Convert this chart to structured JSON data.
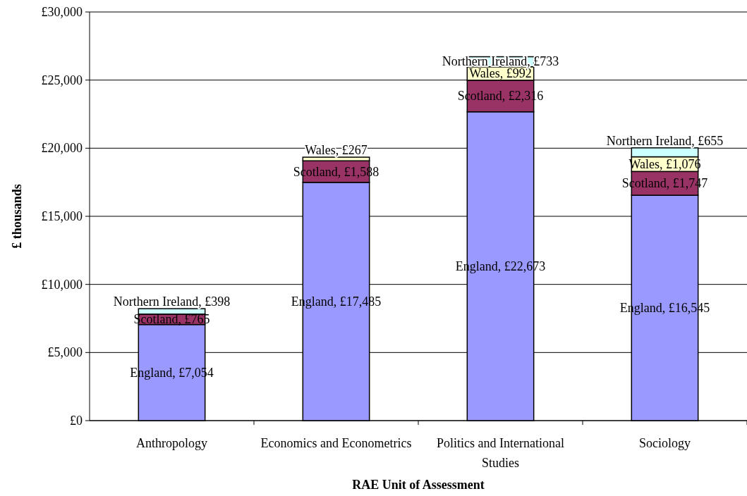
{
  "chart_data": {
    "type": "bar",
    "stacked": true,
    "xlabel": "RAE Unit of Assessment",
    "ylabel": "£ thousands",
    "categories": [
      "Anthropology",
      "Economics and Econometrics",
      "Politics and International Studies",
      "Sociology"
    ],
    "series": [
      {
        "color": "#9999ff",
        "values": [
          7054,
          17485,
          22673,
          16545
        ],
        "value_labels": [
          "England, £7,054",
          "England, £17,485",
          "England, £22,673",
          "England, £16,545"
        ]
      },
      {
        "color": "#993366",
        "values": [
          765,
          1588,
          2316,
          1747
        ],
        "value_labels": [
          "Scotland, £765",
          "Scotland, £1,588",
          "Scotland, £2,316",
          "Scotland, £1,747"
        ]
      },
      {
        "color": "#ffffcc",
        "values": [
          null,
          267,
          992,
          1076
        ],
        "value_labels": [
          null,
          "Wales, £267",
          "Wales, £992",
          "Wales, £1,076"
        ]
      },
      {
        "color": "#ccffff",
        "values": [
          398,
          null,
          733,
          655
        ],
        "value_labels": [
          "Northern Ireland, £398",
          null,
          "Northern Ireland, £733",
          "Northern Ireland, £655"
        ]
      }
    ],
    "ylim": [
      0,
      30000
    ],
    "yticks": [
      {
        "value": 0,
        "label": "£0"
      },
      {
        "value": 5000,
        "label": "£5,000"
      },
      {
        "value": 10000,
        "label": "£10,000"
      },
      {
        "value": 15000,
        "label": "£15,000"
      },
      {
        "value": 20000,
        "label": "£20,000"
      },
      {
        "value": 25000,
        "label": "£25,000"
      },
      {
        "value": 30000,
        "label": "£30,000"
      }
    ],
    "grid": "y",
    "legend": false
  }
}
